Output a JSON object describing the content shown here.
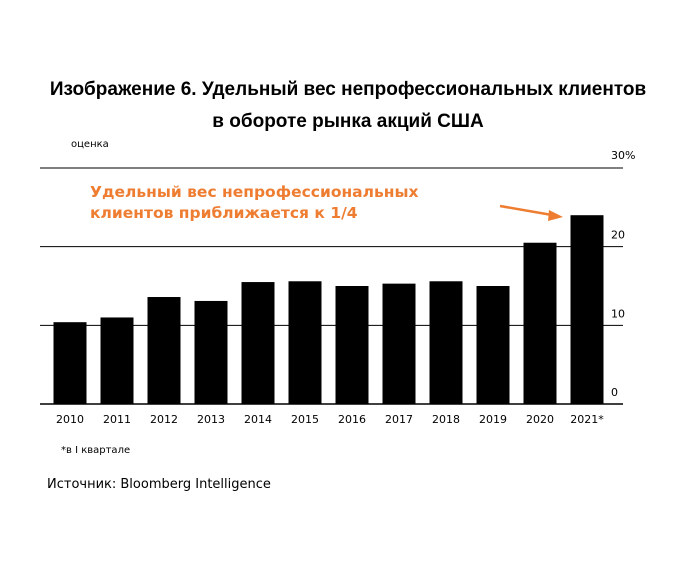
{
  "title": {
    "line1": "Изображение 6. Удельный вес непрофессиональных клиентов",
    "line2": "в обороте рынка акций США"
  },
  "estimate_label": "оценка",
  "annotation": {
    "line1": "Удельный вес непрофессиональных",
    "line2": "клиентов приближается к 1/4",
    "color": "#ee7d31"
  },
  "footnote": "*в I квартале",
  "source": "Источник: Bloomberg Intelligence",
  "chart_data": {
    "type": "bar",
    "categories": [
      "2010",
      "2011",
      "2012",
      "2013",
      "2014",
      "2015",
      "2016",
      "2017",
      "2018",
      "2019",
      "2020",
      "2021*"
    ],
    "values": [
      10.4,
      11.0,
      13.6,
      13.1,
      15.5,
      15.6,
      15.0,
      15.3,
      15.6,
      15.0,
      20.5,
      24.0
    ],
    "ylim": [
      0,
      30
    ],
    "yticks": [
      0,
      10,
      20,
      30
    ],
    "ytick_labels": [
      "0",
      "10",
      "20",
      "30%"
    ],
    "grid": true,
    "bar_color": "#000000",
    "grid_color": "#000000"
  }
}
